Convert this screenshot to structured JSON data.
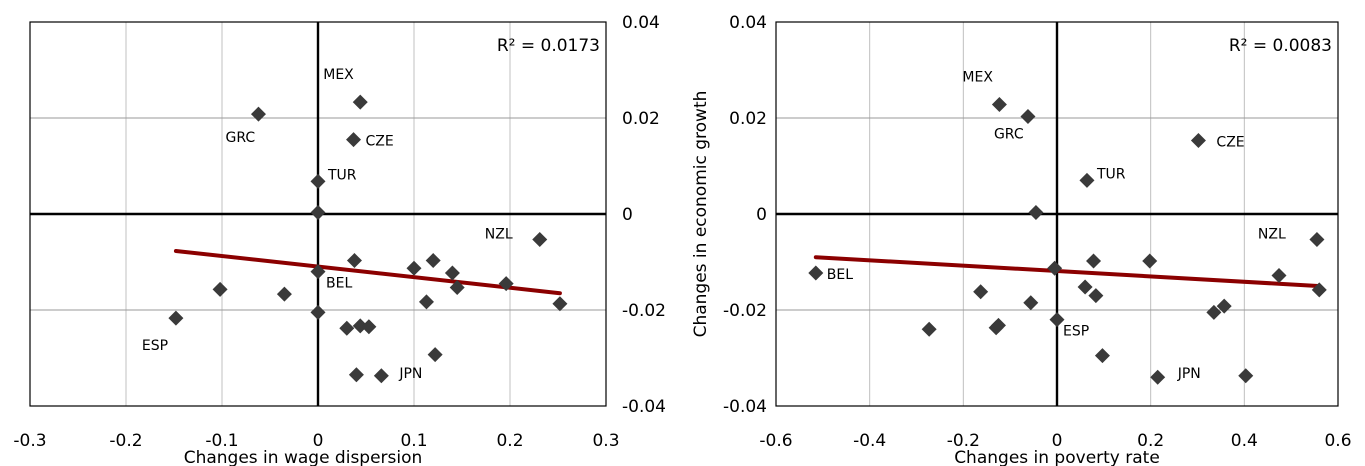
{
  "chart_data": [
    {
      "type": "scatter",
      "xlabel": "Changes in wage dispersion",
      "ylabel": "",
      "xlim": [
        -0.3,
        0.3
      ],
      "ylim": [
        -0.04,
        0.04
      ],
      "xticks": [
        "-0.3",
        "-0.2",
        "-0.1",
        "0",
        "0.1",
        "0.2",
        "0.3"
      ],
      "yticks": [
        "0.04",
        "0.02",
        "0",
        "-0.02",
        "-0.04"
      ],
      "y_axis_side": "right",
      "grid": true,
      "r2_label": "R² = 0.0173",
      "trendline": {
        "color": "#8b0000",
        "x": [
          -0.148,
          0.252
        ],
        "y": [
          -0.0077,
          -0.0165
        ]
      },
      "points": [
        {
          "x": -0.062,
          "y": 0.0208,
          "label": "GRC"
        },
        {
          "x": 0.044,
          "y": 0.0233,
          "label": "MEX"
        },
        {
          "x": 0.037,
          "y": 0.0155,
          "label": "CZE"
        },
        {
          "x": 0.0,
          "y": 0.0068,
          "label": "TUR"
        },
        {
          "x": 0.0,
          "y": 0.0003,
          "label": ""
        },
        {
          "x": 0.231,
          "y": -0.0053,
          "label": "NZL"
        },
        {
          "x": 0.0,
          "y": -0.012,
          "label": "BEL"
        },
        {
          "x": -0.148,
          "y": -0.0217,
          "label": "ESP"
        },
        {
          "x": 0.066,
          "y": -0.0337,
          "label": "JPN"
        },
        {
          "x": -0.102,
          "y": -0.0157,
          "label": ""
        },
        {
          "x": -0.035,
          "y": -0.0167,
          "label": ""
        },
        {
          "x": 0.0,
          "y": -0.0205,
          "label": ""
        },
        {
          "x": 0.038,
          "y": -0.0097,
          "label": ""
        },
        {
          "x": 0.03,
          "y": -0.0238,
          "label": ""
        },
        {
          "x": 0.044,
          "y": -0.0233,
          "label": ""
        },
        {
          "x": 0.053,
          "y": -0.0235,
          "label": ""
        },
        {
          "x": 0.04,
          "y": -0.0335,
          "label": ""
        },
        {
          "x": 0.1,
          "y": -0.0113,
          "label": ""
        },
        {
          "x": 0.12,
          "y": -0.0097,
          "label": ""
        },
        {
          "x": 0.113,
          "y": -0.0183,
          "label": ""
        },
        {
          "x": 0.14,
          "y": -0.0123,
          "label": ""
        },
        {
          "x": 0.145,
          "y": -0.0153,
          "label": ""
        },
        {
          "x": 0.196,
          "y": -0.0145,
          "label": ""
        },
        {
          "x": 0.122,
          "y": -0.0293,
          "label": ""
        },
        {
          "x": 0.252,
          "y": -0.0187,
          "label": ""
        }
      ]
    },
    {
      "type": "scatter",
      "xlabel": "Changes in poverty rate",
      "ylabel": "Changes in economic growth",
      "xlim": [
        -0.6,
        0.6
      ],
      "ylim": [
        -0.04,
        0.04
      ],
      "xticks": [
        "-0.6",
        "-0.4",
        "-0.2",
        "0",
        "0.2",
        "0.4",
        "0.6"
      ],
      "yticks": [
        "0.04",
        "0.02",
        "0",
        "-0.02",
        "-0.04"
      ],
      "y_axis_side": "left",
      "grid": true,
      "r2_label": "R² = 0.0083",
      "trendline": {
        "color": "#8b0000",
        "x": [
          -0.515,
          0.557
        ],
        "y": [
          -0.009,
          -0.015
        ]
      },
      "points": [
        {
          "x": -0.123,
          "y": 0.0228,
          "label": "MEX"
        },
        {
          "x": -0.062,
          "y": 0.0203,
          "label": "GRC"
        },
        {
          "x": 0.302,
          "y": 0.0153,
          "label": "CZE"
        },
        {
          "x": 0.064,
          "y": 0.007,
          "label": "TUR"
        },
        {
          "x": -0.045,
          "y": 0.0003,
          "label": ""
        },
        {
          "x": 0.555,
          "y": -0.0053,
          "label": "NZL"
        },
        {
          "x": -0.515,
          "y": -0.0123,
          "label": "BEL"
        },
        {
          "x": 0.0,
          "y": -0.022,
          "label": "ESP"
        },
        {
          "x": 0.215,
          "y": -0.034,
          "label": "JPN"
        },
        {
          "x": -0.005,
          "y": -0.0113,
          "label": ""
        },
        {
          "x": 0.078,
          "y": -0.0098,
          "label": ""
        },
        {
          "x": 0.198,
          "y": -0.0098,
          "label": ""
        },
        {
          "x": -0.163,
          "y": -0.0162,
          "label": ""
        },
        {
          "x": -0.056,
          "y": -0.0185,
          "label": ""
        },
        {
          "x": 0.083,
          "y": -0.017,
          "label": ""
        },
        {
          "x": 0.06,
          "y": -0.0152,
          "label": ""
        },
        {
          "x": -0.273,
          "y": -0.024,
          "label": ""
        },
        {
          "x": -0.13,
          "y": -0.0237,
          "label": ""
        },
        {
          "x": -0.125,
          "y": -0.0232,
          "label": ""
        },
        {
          "x": 0.097,
          "y": -0.0295,
          "label": ""
        },
        {
          "x": 0.335,
          "y": -0.0205,
          "label": ""
        },
        {
          "x": 0.357,
          "y": -0.0192,
          "label": ""
        },
        {
          "x": 0.474,
          "y": -0.0128,
          "label": ""
        },
        {
          "x": 0.56,
          "y": -0.0158,
          "label": ""
        },
        {
          "x": 0.403,
          "y": -0.0337,
          "label": ""
        }
      ]
    }
  ]
}
